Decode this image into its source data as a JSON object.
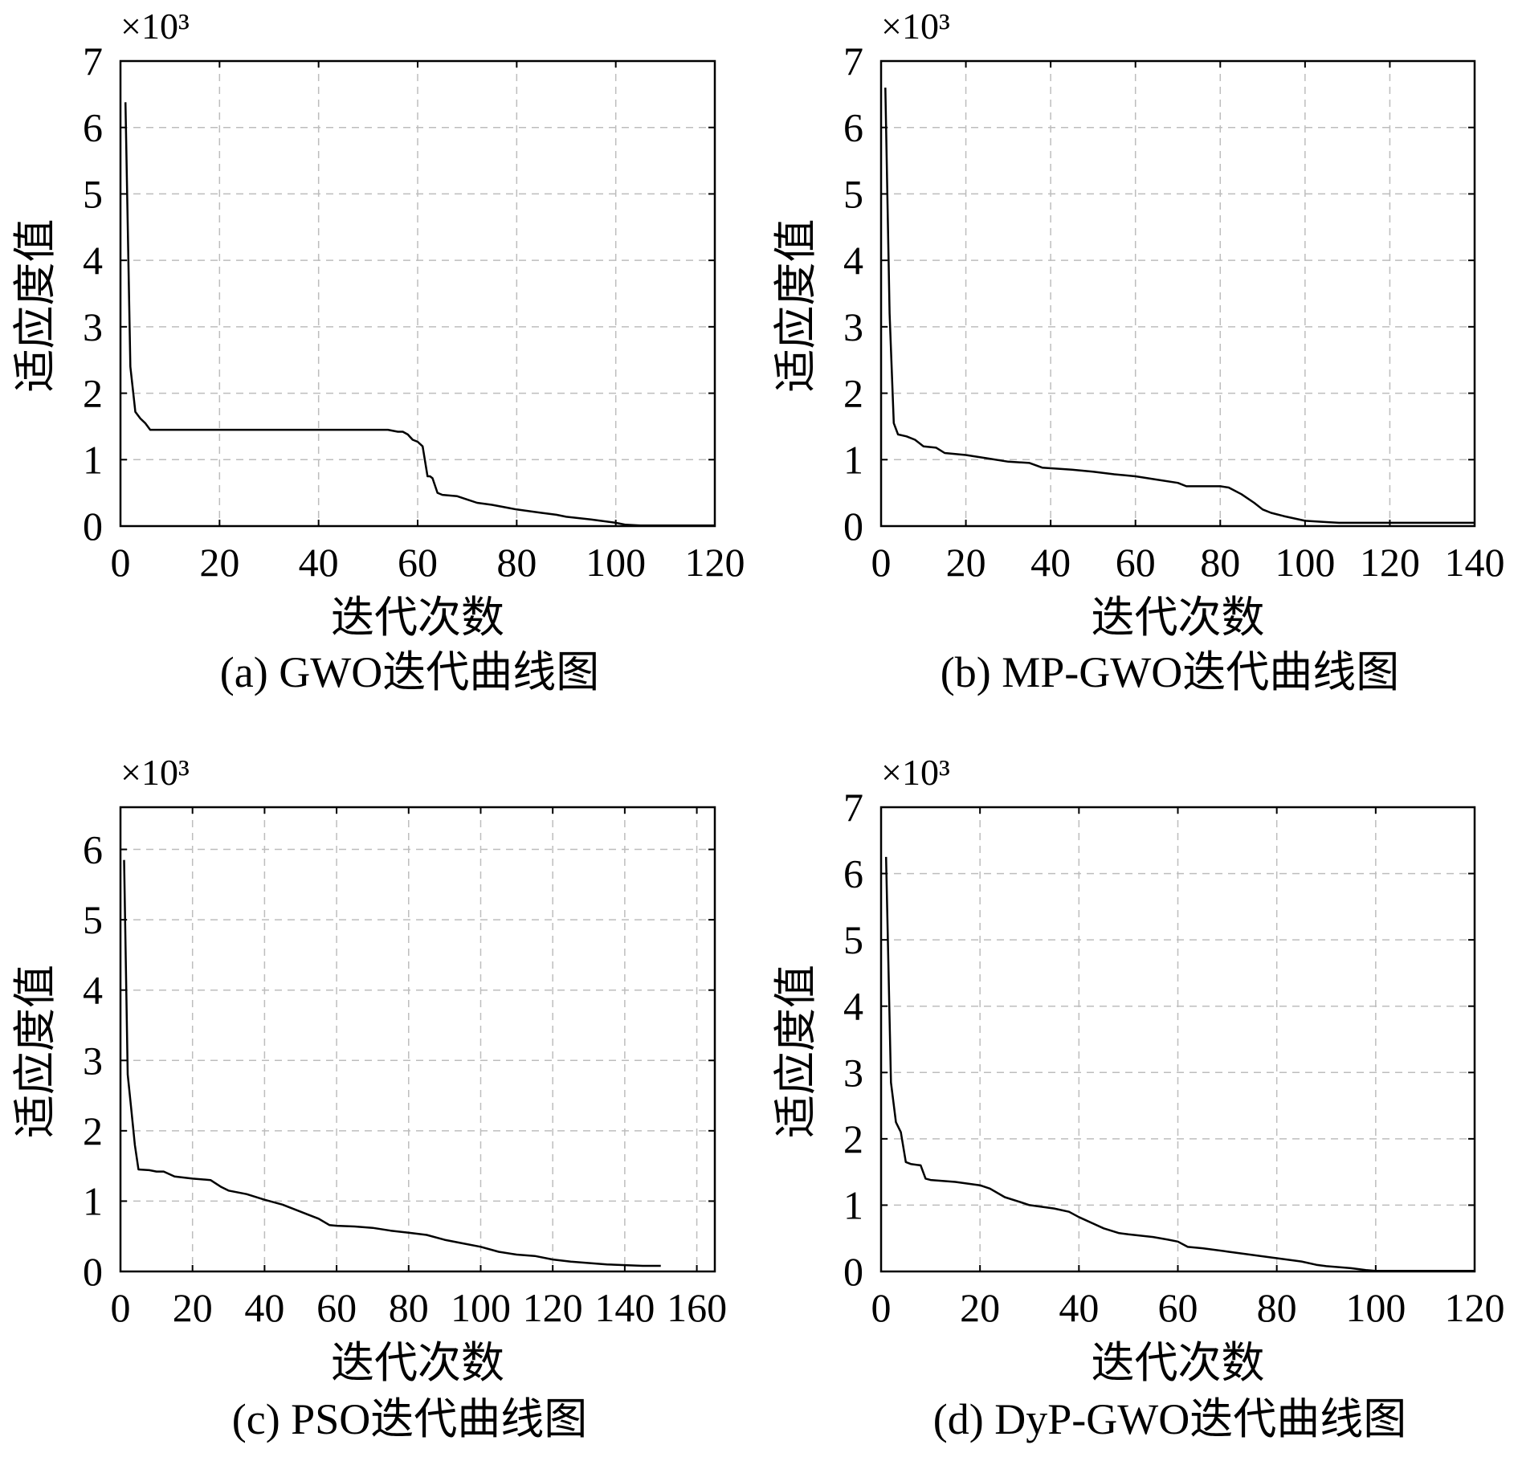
{
  "chart_data": [
    {
      "type": "line",
      "caption": "(a) GWO迭代曲线图",
      "xlabel": "迭代次数",
      "ylabel": "适应度值",
      "yscale_label": "×10³",
      "xlim": [
        0,
        120
      ],
      "ylim": [
        0,
        7
      ],
      "xticks": [
        0,
        20,
        40,
        60,
        80,
        100,
        120
      ],
      "yticks": [
        0,
        1,
        2,
        3,
        4,
        5,
        6,
        7
      ],
      "grid": true,
      "series": [
        {
          "x": [
            1,
            2,
            3,
            4,
            5,
            6,
            10,
            20,
            30,
            40,
            50,
            54,
            56,
            57,
            58,
            59,
            60,
            61,
            62,
            62.5,
            63,
            64,
            65,
            68,
            70,
            72,
            75,
            80,
            85,
            88,
            90,
            95,
            100,
            102,
            105,
            110,
            120
          ],
          "y": [
            6.38,
            2.4,
            1.72,
            1.62,
            1.55,
            1.45,
            1.45,
            1.45,
            1.45,
            1.45,
            1.45,
            1.45,
            1.42,
            1.42,
            1.38,
            1.3,
            1.27,
            1.2,
            0.75,
            0.75,
            0.72,
            0.5,
            0.47,
            0.45,
            0.4,
            0.35,
            0.32,
            0.25,
            0.2,
            0.17,
            0.14,
            0.1,
            0.05,
            0.02,
            0.01,
            0.01,
            0.01
          ]
        }
      ]
    },
    {
      "type": "line",
      "caption": "(b) MP-GWO迭代曲线图",
      "xlabel": "迭代次数",
      "ylabel": "适应度值",
      "yscale_label": "×10³",
      "xlim": [
        0,
        140
      ],
      "ylim": [
        0,
        7
      ],
      "xticks": [
        0,
        20,
        40,
        60,
        80,
        100,
        120,
        140
      ],
      "yticks": [
        0,
        1,
        2,
        3,
        4,
        5,
        6,
        7
      ],
      "grid": true,
      "series": [
        {
          "x": [
            1,
            2,
            3,
            4,
            6,
            8,
            10,
            13,
            15,
            20,
            25,
            30,
            35,
            38,
            45,
            50,
            55,
            60,
            65,
            70,
            72,
            80,
            82,
            85,
            88,
            90,
            92,
            95,
            100,
            105,
            108,
            120,
            140
          ],
          "y": [
            6.6,
            3.2,
            1.55,
            1.38,
            1.35,
            1.3,
            1.2,
            1.18,
            1.1,
            1.07,
            1.02,
            0.97,
            0.95,
            0.88,
            0.85,
            0.82,
            0.78,
            0.75,
            0.7,
            0.65,
            0.6,
            0.6,
            0.58,
            0.48,
            0.35,
            0.25,
            0.2,
            0.15,
            0.08,
            0.06,
            0.05,
            0.05,
            0.05
          ]
        }
      ]
    },
    {
      "type": "line",
      "caption": "(c) PSO迭代曲线图",
      "xlabel": "迭代次数",
      "ylabel": "适应度值",
      "yscale_label": "×10³",
      "xlim": [
        0,
        165
      ],
      "ylim": [
        0,
        6.6
      ],
      "xticks": [
        0,
        20,
        40,
        60,
        80,
        100,
        120,
        140,
        160
      ],
      "yticks": [
        0,
        1,
        2,
        3,
        4,
        5,
        6
      ],
      "grid": true,
      "series": [
        {
          "x": [
            1,
            2,
            3,
            4,
            5,
            8,
            10,
            12,
            15,
            20,
            25,
            28,
            30,
            35,
            40,
            45,
            50,
            55,
            58,
            60,
            65,
            70,
            75,
            80,
            85,
            90,
            95,
            100,
            105,
            110,
            115,
            120,
            125,
            130,
            135,
            140,
            145,
            150
          ],
          "y": [
            5.85,
            2.8,
            2.3,
            1.8,
            1.45,
            1.44,
            1.42,
            1.42,
            1.35,
            1.32,
            1.3,
            1.2,
            1.15,
            1.1,
            1.02,
            0.95,
            0.85,
            0.75,
            0.66,
            0.65,
            0.64,
            0.62,
            0.58,
            0.55,
            0.52,
            0.45,
            0.4,
            0.35,
            0.28,
            0.24,
            0.22,
            0.17,
            0.14,
            0.12,
            0.1,
            0.09,
            0.08,
            0.08
          ]
        }
      ]
    },
    {
      "type": "line",
      "caption": "(d) DyP-GWO迭代曲线图",
      "xlabel": "迭代次数",
      "ylabel": "适应度值",
      "yscale_label": "×10³",
      "xlim": [
        0,
        120
      ],
      "ylim": [
        0,
        7
      ],
      "xticks": [
        0,
        20,
        40,
        60,
        80,
        100,
        120
      ],
      "yticks": [
        0,
        1,
        2,
        3,
        4,
        5,
        6,
        7
      ],
      "grid": true,
      "series": [
        {
          "x": [
            1,
            2,
            3,
            4,
            5,
            6,
            8,
            9,
            10,
            15,
            20,
            22,
            25,
            28,
            30,
            35,
            38,
            40,
            45,
            48,
            50,
            55,
            58,
            60,
            62,
            65,
            70,
            75,
            80,
            85,
            88,
            90,
            95,
            98,
            100,
            105,
            110,
            120
          ],
          "y": [
            6.25,
            2.85,
            2.25,
            2.1,
            1.65,
            1.62,
            1.6,
            1.4,
            1.38,
            1.35,
            1.3,
            1.25,
            1.12,
            1.05,
            1.0,
            0.95,
            0.9,
            0.82,
            0.65,
            0.58,
            0.56,
            0.52,
            0.48,
            0.45,
            0.37,
            0.35,
            0.3,
            0.25,
            0.2,
            0.15,
            0.1,
            0.08,
            0.05,
            0.02,
            0.01,
            0.01,
            0.01,
            0.01
          ]
        }
      ]
    }
  ]
}
